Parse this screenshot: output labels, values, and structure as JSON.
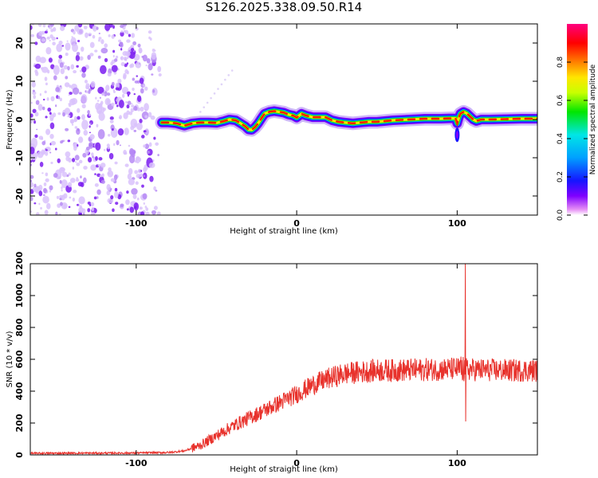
{
  "title": "S126.2025.338.09.50.R14",
  "chart_data": [
    {
      "type": "heatmap",
      "xlabel": "Height of straight line (km)",
      "ylabel": "Frequency (Hz)",
      "xlim": [
        -166,
        150
      ],
      "ylim": [
        -25,
        25
      ],
      "xticks": [
        -100,
        0,
        100
      ],
      "yticks": [
        -20,
        -10,
        0,
        10,
        20
      ],
      "colorbar": {
        "label": "Normalized spectral amplitude",
        "range": [
          0,
          1
        ],
        "ticks": [
          "0.0",
          "0.2",
          "0.4",
          "0.6",
          "0.8"
        ],
        "tick_values": [
          0,
          0.2,
          0.4,
          0.6,
          0.8
        ]
      },
      "noise_region": [
        -166,
        -83
      ],
      "ridge": {
        "x": [
          -84,
          -80,
          -75,
          -70,
          -65,
          -60,
          -55,
          -50,
          -45,
          -42,
          -38,
          -35,
          -32,
          -30,
          -28,
          -26,
          -24,
          -22,
          -20,
          -17,
          -14,
          -11,
          -8,
          -5,
          -2,
          0,
          3,
          6,
          10,
          14,
          18,
          22,
          26,
          30,
          35,
          40,
          45,
          50,
          60,
          70,
          80,
          90,
          95,
          99,
          100,
          101,
          102,
          104,
          106,
          108,
          110,
          112,
          115,
          120,
          130,
          140,
          150
        ],
        "y": [
          -0.8,
          -0.8,
          -1.0,
          -1.6,
          -1.0,
          -0.8,
          -0.8,
          -0.9,
          -0.4,
          0,
          -0.2,
          -1.0,
          -1.8,
          -2.6,
          -2.7,
          -2.0,
          -1.0,
          0.3,
          1.5,
          2.0,
          2.2,
          2.0,
          1.8,
          1.3,
          1.0,
          0.5,
          1.5,
          1.0,
          0.6,
          0.6,
          0.6,
          -0.2,
          -0.6,
          -0.8,
          -1.0,
          -0.8,
          -0.6,
          -0.6,
          -0.2,
          0.0,
          0.2,
          0.2,
          0.3,
          0.3,
          -1.0,
          0.5,
          1.5,
          2.0,
          1.6,
          0.8,
          0.0,
          -0.4,
          0.0,
          0.0,
          0.1,
          0.2,
          0.2
        ]
      }
    },
    {
      "type": "line",
      "xlabel": "Height of straight line (km)",
      "ylabel": "SNR (10 * v/v)",
      "xlim": [
        -166,
        150
      ],
      "ylim": [
        0,
        1200
      ],
      "xticks": [
        -100,
        0,
        100
      ],
      "yticks": [
        0,
        200,
        400,
        600,
        800,
        1000,
        1200
      ],
      "color": "#e8322c",
      "trend": {
        "x": [
          -166,
          -100,
          -80,
          -70,
          -60,
          -50,
          -40,
          -30,
          -20,
          -10,
          0,
          10,
          20,
          30,
          40,
          50,
          60,
          80,
          100,
          110,
          130,
          150
        ],
        "y": [
          10,
          12,
          15,
          25,
          60,
          120,
          180,
          230,
          280,
          330,
          380,
          440,
          480,
          510,
          520,
          530,
          530,
          535,
          540,
          535,
          530,
          530
        ]
      },
      "spike": {
        "x": 105,
        "y": 1200,
        "min": 210
      }
    }
  ],
  "colors": {
    "colormap": [
      "#ffffff",
      "#e68ef5",
      "#7f00ff",
      "#1515ff",
      "#00a0ff",
      "#00e6e6",
      "#00e600",
      "#c8ff00",
      "#ffe600",
      "#ff8000",
      "#ff0000",
      "#ff007f"
    ],
    "scatter": "#7a1bf0",
    "axis": "#000000"
  }
}
